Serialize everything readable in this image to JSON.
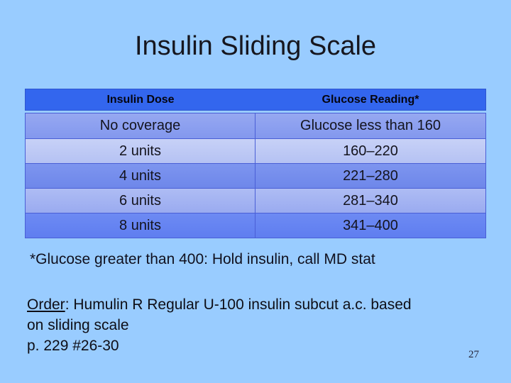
{
  "slide": {
    "title": "Insulin Sliding Scale",
    "footnote": "*Glucose greater than 400: Hold insulin, call MD stat",
    "order": {
      "label": "Order",
      "rest": ": Humulin R Regular U-100 insulin subcut a.c. based",
      "line2": "on sliding scale",
      "line3": "p. 229 #26-30"
    },
    "page_number": "27"
  },
  "table": {
    "headers": [
      "Insulin Dose",
      "Glucose Reading*"
    ],
    "rows": [
      {
        "dose": "No coverage",
        "glucose": "Glucose less than 160"
      },
      {
        "dose": "2 units",
        "glucose": "160–220"
      },
      {
        "dose": "4 units",
        "glucose": "221–280"
      },
      {
        "dose": "6 units",
        "glucose": "281–340"
      },
      {
        "dose": "8 units",
        "glucose": "341–400"
      }
    ]
  },
  "colors": {
    "slide_background": "#99CCFF",
    "header_row_bg": "#3366EE",
    "row_backgrounds": [
      "#8CA0EF",
      "#BFCBF5",
      "#748EEC",
      "#A4B3F2",
      "#6684F1"
    ],
    "table_border": "#4A5FD6",
    "title_text": "#16161E",
    "body_text": "#14141E"
  }
}
